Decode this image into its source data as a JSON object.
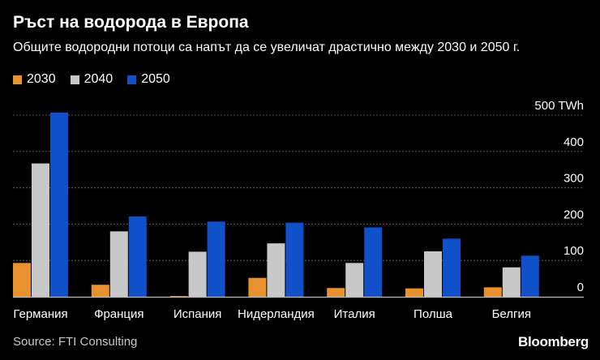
{
  "header": {
    "title": "Ръст на водорода в Европа",
    "subtitle": "Общите водородни потоци са напът да се увеличат драстично между 2030 и 2050 г."
  },
  "footer": {
    "source": "Source: FTI Consulting",
    "brand": "Bloomberg"
  },
  "colors": {
    "background": "#000000",
    "gridline": "#5a5a5a",
    "axis": "#bdbdbd",
    "text": "#ffffff"
  },
  "chart_data": {
    "type": "bar",
    "title": "Ръст на водорода в Европа",
    "unit": "TWh",
    "categories": [
      "Германия",
      "Франция",
      "Испания",
      "Нидерландия",
      "Италия",
      "Полша",
      "Белгия"
    ],
    "series": [
      {
        "name": "2030",
        "color": "#e8912f",
        "values": [
          93,
          33,
          2,
          52,
          24,
          23,
          26
        ]
      },
      {
        "name": "2040",
        "color": "#c8c8c8",
        "values": [
          367,
          180,
          124,
          147,
          93,
          125,
          81
        ]
      },
      {
        "name": "2050",
        "color": "#1050c8",
        "values": [
          507,
          221,
          207,
          204,
          191,
          160,
          113
        ]
      }
    ],
    "ylim": [
      0,
      500
    ],
    "yticks": [
      0,
      100,
      200,
      300,
      400,
      500
    ],
    "ytick_labels": [
      "0",
      "100",
      "200",
      "300",
      "400",
      "500"
    ],
    "top_tick_unit": "TWh",
    "grid": true,
    "legend_position": "top-left",
    "xlabel": "",
    "ylabel": ""
  }
}
